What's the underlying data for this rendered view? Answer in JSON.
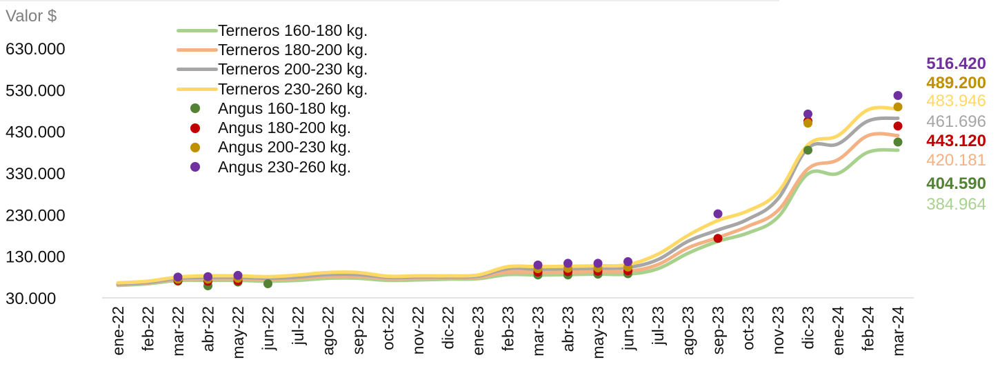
{
  "chart_data": {
    "type": "line",
    "ylabel": "Valor $",
    "ylim": [
      30000,
      630000
    ],
    "yticks": [
      "630.000",
      "530.000",
      "430.000",
      "330.000",
      "230.000",
      "130.000",
      "30.000"
    ],
    "ytick_values": [
      630000,
      530000,
      430000,
      330000,
      230000,
      130000,
      30000
    ],
    "categories": [
      "ene-22",
      "feb-22",
      "mar-22",
      "abr-22",
      "may-22",
      "jun-22",
      "jul-22",
      "ago-22",
      "sep-22",
      "oct-22",
      "nov-22",
      "dic-22",
      "ene-23",
      "feb-23",
      "mar-23",
      "abr-23",
      "may-23",
      "jun-23",
      "jul-23",
      "ago-23",
      "sep-23",
      "oct-23",
      "nov-23",
      "dic-23",
      "ene-24",
      "feb-24",
      "mar-24"
    ],
    "legend_position": "top-left",
    "series": [
      {
        "name": "Terneros 160-180 kg.",
        "kind": "line",
        "color": "#a9d18e",
        "values": [
          60000,
          64000,
          72000,
          72000,
          72000,
          70000,
          72000,
          77000,
          77000,
          72000,
          73000,
          75000,
          76000,
          86000,
          85000,
          86000,
          87000,
          87000,
          100000,
          137000,
          166000,
          186000,
          224000,
          328000,
          329000,
          380000,
          384964
        ]
      },
      {
        "name": "Terneros 180-200 kg.",
        "kind": "line",
        "color": "#f4b183",
        "values": [
          62000,
          66000,
          75000,
          76000,
          76000,
          74000,
          77000,
          82000,
          82000,
          76000,
          77000,
          78000,
          79000,
          92000,
          91000,
          92000,
          93000,
          94000,
          110000,
          150000,
          175000,
          202000,
          240000,
          340000,
          362000,
          420000,
          420181
        ]
      },
      {
        "name": "Terneros 200-230 kg.",
        "kind": "line",
        "color": "#a6a6a6",
        "values": [
          63000,
          67000,
          77000,
          79000,
          79000,
          77000,
          80000,
          86000,
          86000,
          79000,
          80000,
          80000,
          82000,
          100000,
          99000,
          100000,
          101000,
          103000,
          122000,
          166000,
          193000,
          219000,
          268000,
          390000,
          400000,
          455000,
          461696
        ]
      },
      {
        "name": "Terneros 230-260 kg.",
        "kind": "line",
        "color": "#ffd966",
        "values": [
          66000,
          70000,
          80000,
          83000,
          83000,
          81000,
          85000,
          91000,
          91000,
          82000,
          83000,
          83000,
          85000,
          105000,
          105000,
          106000,
          107000,
          110000,
          135000,
          180000,
          216000,
          239000,
          284000,
          398000,
          420000,
          482000,
          483946
        ]
      },
      {
        "name": "Angus 160-180 kg.",
        "kind": "scatter",
        "color": "#548235",
        "points": [
          [
            2,
            70000
          ],
          [
            3,
            59000
          ],
          [
            4,
            68000
          ],
          [
            5,
            64000
          ],
          [
            14,
            85000
          ],
          [
            15,
            85000
          ],
          [
            16,
            87000
          ],
          [
            17,
            88000
          ],
          [
            23,
            385000
          ],
          [
            26,
            404590
          ]
        ]
      },
      {
        "name": "Angus 180-200 kg.",
        "kind": "scatter",
        "color": "#c00000",
        "points": [
          [
            2,
            72000
          ],
          [
            3,
            70000
          ],
          [
            4,
            71000
          ],
          [
            14,
            92000
          ],
          [
            15,
            93000
          ],
          [
            16,
            94000
          ],
          [
            17,
            95000
          ],
          [
            20,
            173000
          ],
          [
            23,
            455000
          ],
          [
            26,
            443120
          ]
        ]
      },
      {
        "name": "Angus 200-230 kg.",
        "kind": "scatter",
        "color": "#bf9000",
        "points": [
          [
            2,
            75000
          ],
          [
            3,
            75000
          ],
          [
            4,
            77000
          ],
          [
            14,
            100000
          ],
          [
            15,
            101000
          ],
          [
            16,
            102000
          ],
          [
            17,
            104000
          ],
          [
            23,
            450000
          ],
          [
            26,
            489200
          ]
        ]
      },
      {
        "name": "Angus 230-260 kg.",
        "kind": "scatter",
        "color": "#7030a0",
        "points": [
          [
            2,
            80000
          ],
          [
            3,
            81000
          ],
          [
            4,
            84000
          ],
          [
            14,
            109000
          ],
          [
            15,
            113000
          ],
          [
            16,
            113000
          ],
          [
            17,
            117000
          ],
          [
            20,
            232000
          ],
          [
            23,
            472000
          ],
          [
            26,
            516420
          ]
        ]
      }
    ],
    "end_labels": [
      {
        "text": "516.420",
        "color": "#7030a0",
        "bold": true
      },
      {
        "text": "489.200",
        "color": "#bf9000",
        "bold": true
      },
      {
        "text": "483.946",
        "color": "#ffd966",
        "bold": false
      },
      {
        "text": "461.696",
        "color": "#a6a6a6",
        "bold": false
      },
      {
        "text": "443.120",
        "color": "#c00000",
        "bold": true
      },
      {
        "text": "420.181",
        "color": "#f4b183",
        "bold": false
      },
      {
        "text": "404.590",
        "color": "#548235",
        "bold": true
      },
      {
        "text": "384.964",
        "color": "#a9d18e",
        "bold": false
      }
    ]
  }
}
